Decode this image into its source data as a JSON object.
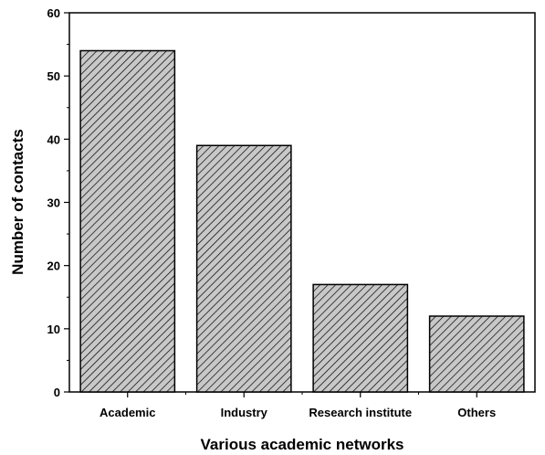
{
  "chart_data": {
    "type": "bar",
    "title": "",
    "xlabel": "Various academic networks",
    "ylabel": "Number of contacts",
    "categories": [
      "Academic",
      "Industry",
      "Research institute",
      "Others"
    ],
    "values": [
      54,
      39,
      17,
      12
    ],
    "ylim": [
      0,
      60
    ],
    "yticks": [
      "0",
      "10",
      "20",
      "30",
      "40",
      "50",
      "60"
    ],
    "grid": false,
    "legend": "none",
    "bar_fill": "#c8c8c8",
    "bar_pattern": "diagonal-hatch",
    "bar_stroke": "#000000"
  }
}
